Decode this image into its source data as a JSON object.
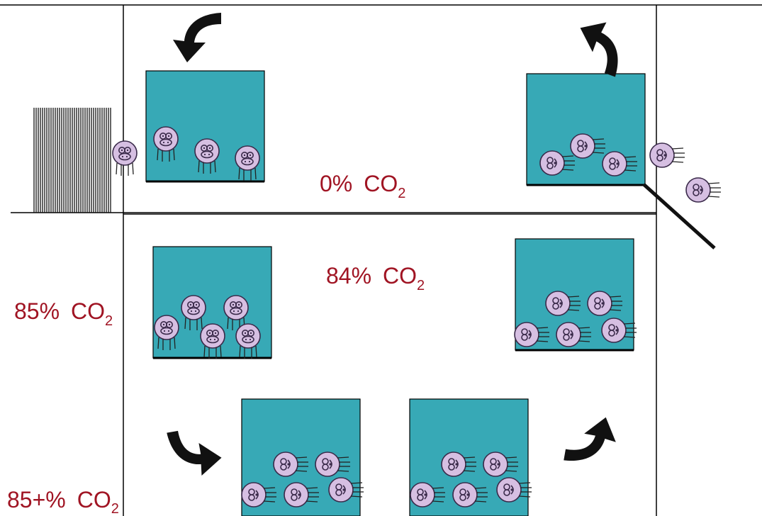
{
  "labels": {
    "top_chamber": {
      "pct": "0%",
      "gas": "CO",
      "sub": "2"
    },
    "middle_chamber": {
      "pct": "84%",
      "gas": "CO",
      "sub": "2"
    },
    "left_middle": {
      "pct": "85%",
      "gas": "CO",
      "sub": "2"
    },
    "left_bottom": {
      "pct": "85+%",
      "gas": "CO",
      "sub": "2"
    }
  },
  "colors": {
    "gondola": "#37a9b6",
    "pig": "#d6bfe2",
    "pig_outline": "#3a2a4a",
    "label": "#a01423",
    "arrow": "#111111",
    "frame": "#000000"
  },
  "icons": {
    "pig": "pig-icon",
    "arrow": "curved-arrow-icon",
    "gate": "entry-gate-icon"
  }
}
